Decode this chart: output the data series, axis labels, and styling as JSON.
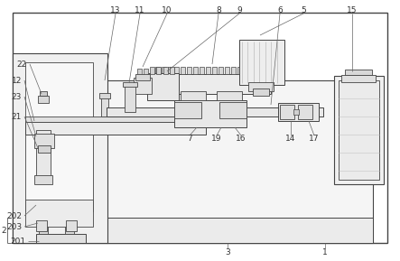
{
  "fig_width": 4.43,
  "fig_height": 2.89,
  "dpi": 100,
  "bg_color": "#ffffff",
  "line_color": "#444444",
  "line_width": 0.7,
  "label_fontsize": 6.5
}
